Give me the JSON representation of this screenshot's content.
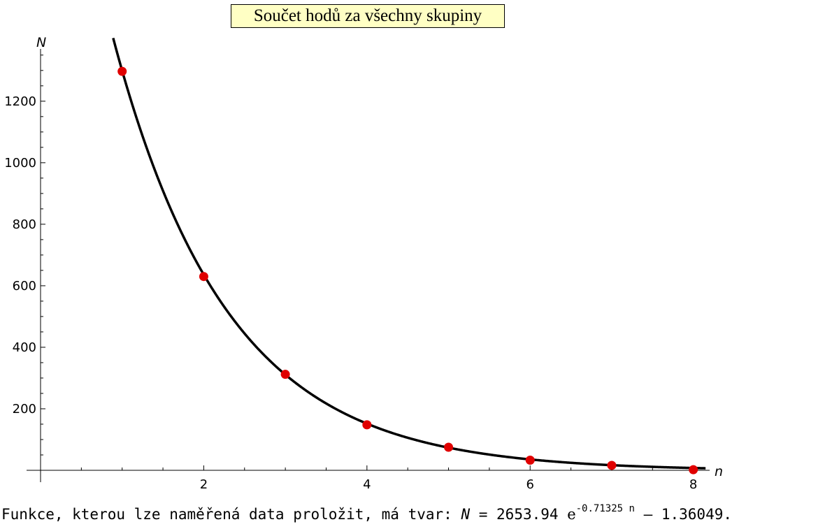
{
  "chart_data": {
    "type": "scatter",
    "title": "Součet hodů za všechny skupiny",
    "xlabel": "n",
    "ylabel": "N",
    "xlim": [
      0,
      8.2
    ],
    "ylim": [
      0,
      1370
    ],
    "x_ticks": [
      "2",
      "4",
      "6",
      "8"
    ],
    "y_ticks": [
      "200",
      "400",
      "600",
      "800",
      "1000",
      "1200"
    ],
    "series": [
      {
        "x": [
          1,
          2,
          3,
          4,
          5,
          6,
          7,
          8
        ],
        "y": [
          1297,
          630,
          312,
          148,
          75,
          33,
          16,
          2
        ]
      }
    ],
    "fit": {
      "a": 2653.94,
      "b": 0.71325,
      "c": 1.36049
    },
    "colors": {
      "points": "#e00000",
      "curve": "#000000"
    },
    "caption": {
      "prefix": "Funkce, kterou lze naměřená data proložit, má tvar: ",
      "lhs": "N",
      "equals": " = 2653.94 ",
      "base": "e",
      "exponent": "-0.71325 n",
      "suffix": " – 1.36049."
    }
  }
}
